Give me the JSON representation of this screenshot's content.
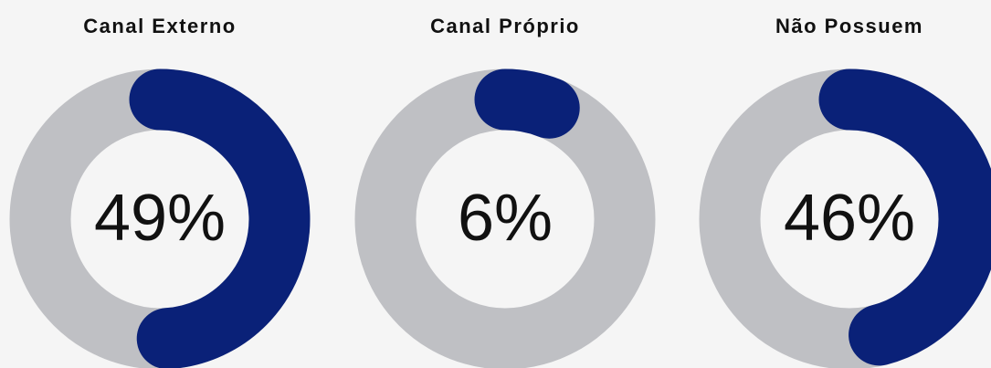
{
  "chart_data": {
    "type": "donut",
    "categories": [
      "Canal Externo",
      "Canal Próprio",
      "Não Possuem"
    ],
    "values": [
      49,
      6,
      46
    ],
    "value_labels": [
      "49%",
      "6%",
      "46%"
    ],
    "ylim": [
      0,
      100
    ],
    "color": "#0a2178",
    "track_color": "#bfc0c4"
  }
}
